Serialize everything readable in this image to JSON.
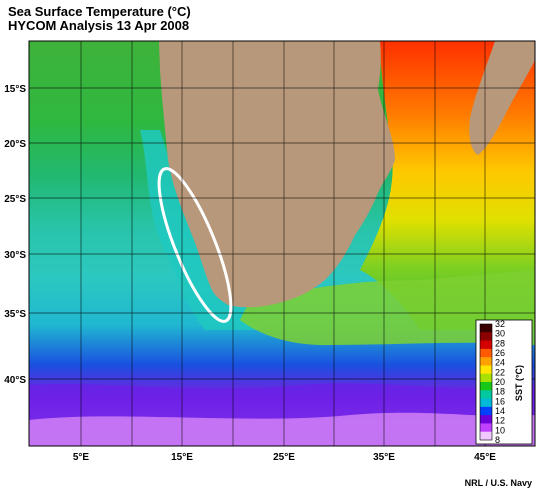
{
  "header": {
    "title": "Sea Surface Temperature (°C)",
    "subtitle": "HYCOM Analysis 13 Apr 2008"
  },
  "map": {
    "lat_labels": [
      "15°S",
      "20°S",
      "25°S",
      "30°S",
      "35°S",
      "40°S"
    ],
    "lon_labels": [
      "5°E",
      "15°E",
      "25°E",
      "35°E",
      "45°E"
    ],
    "land_color": "#b8987a",
    "annotation": "white-ellipse-upwelling-zone"
  },
  "legend": {
    "title": "SST (°C)",
    "ticks": [
      "32",
      "30",
      "28",
      "26",
      "24",
      "22",
      "20",
      "18",
      "16",
      "14",
      "12",
      "10",
      "8"
    ],
    "colors": [
      "#3a0000",
      "#8b0000",
      "#d40000",
      "#ff5a00",
      "#ffa000",
      "#ffe400",
      "#a8e000",
      "#18c818",
      "#00c8a0",
      "#00b8d8",
      "#0040ff",
      "#6a00d8",
      "#c040ff",
      "#f0c8ff"
    ]
  },
  "footer": {
    "credit": "NRL / U.S. Navy"
  }
}
